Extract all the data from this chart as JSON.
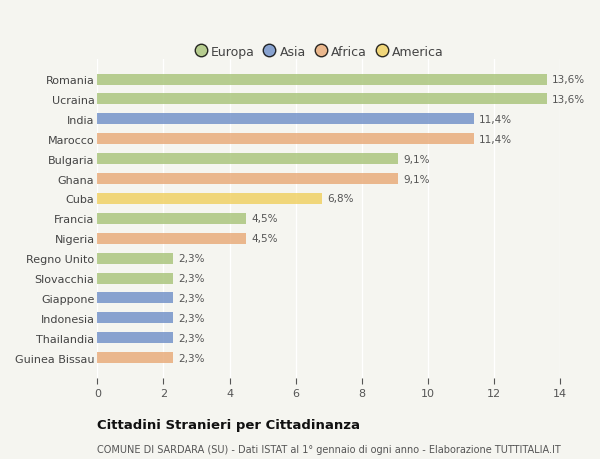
{
  "countries": [
    "Romania",
    "Ucraina",
    "India",
    "Marocco",
    "Bulgaria",
    "Ghana",
    "Cuba",
    "Francia",
    "Nigeria",
    "Regno Unito",
    "Slovacchia",
    "Giappone",
    "Indonesia",
    "Thailandia",
    "Guinea Bissau"
  ],
  "values": [
    13.6,
    13.6,
    11.4,
    11.4,
    9.1,
    9.1,
    6.8,
    4.5,
    4.5,
    2.3,
    2.3,
    2.3,
    2.3,
    2.3,
    2.3
  ],
  "continents": [
    "Europa",
    "Europa",
    "Asia",
    "Africa",
    "Europa",
    "Africa",
    "America",
    "Europa",
    "Africa",
    "Europa",
    "Europa",
    "Asia",
    "Asia",
    "Asia",
    "Africa"
  ],
  "colors": {
    "Europa": "#a8c47a",
    "Asia": "#7090c8",
    "Africa": "#e8aa78",
    "America": "#f0d060"
  },
  "label_texts": [
    "13,6%",
    "13,6%",
    "11,4%",
    "11,4%",
    "9,1%",
    "9,1%",
    "6,8%",
    "4,5%",
    "4,5%",
    "2,3%",
    "2,3%",
    "2,3%",
    "2,3%",
    "2,3%",
    "2,3%"
  ],
  "xlim": [
    0,
    14
  ],
  "xticks": [
    0,
    2,
    4,
    6,
    8,
    10,
    12,
    14
  ],
  "title": "Cittadini Stranieri per Cittadinanza",
  "subtitle": "COMUNE DI SARDARA (SU) - Dati ISTAT al 1° gennaio di ogni anno - Elaborazione TUTTITALIA.IT",
  "legend_order": [
    "Europa",
    "Asia",
    "Africa",
    "America"
  ],
  "background_color": "#f5f5f0",
  "bar_alpha": 0.82,
  "figsize": [
    6.0,
    4.6
  ],
  "dpi": 100
}
